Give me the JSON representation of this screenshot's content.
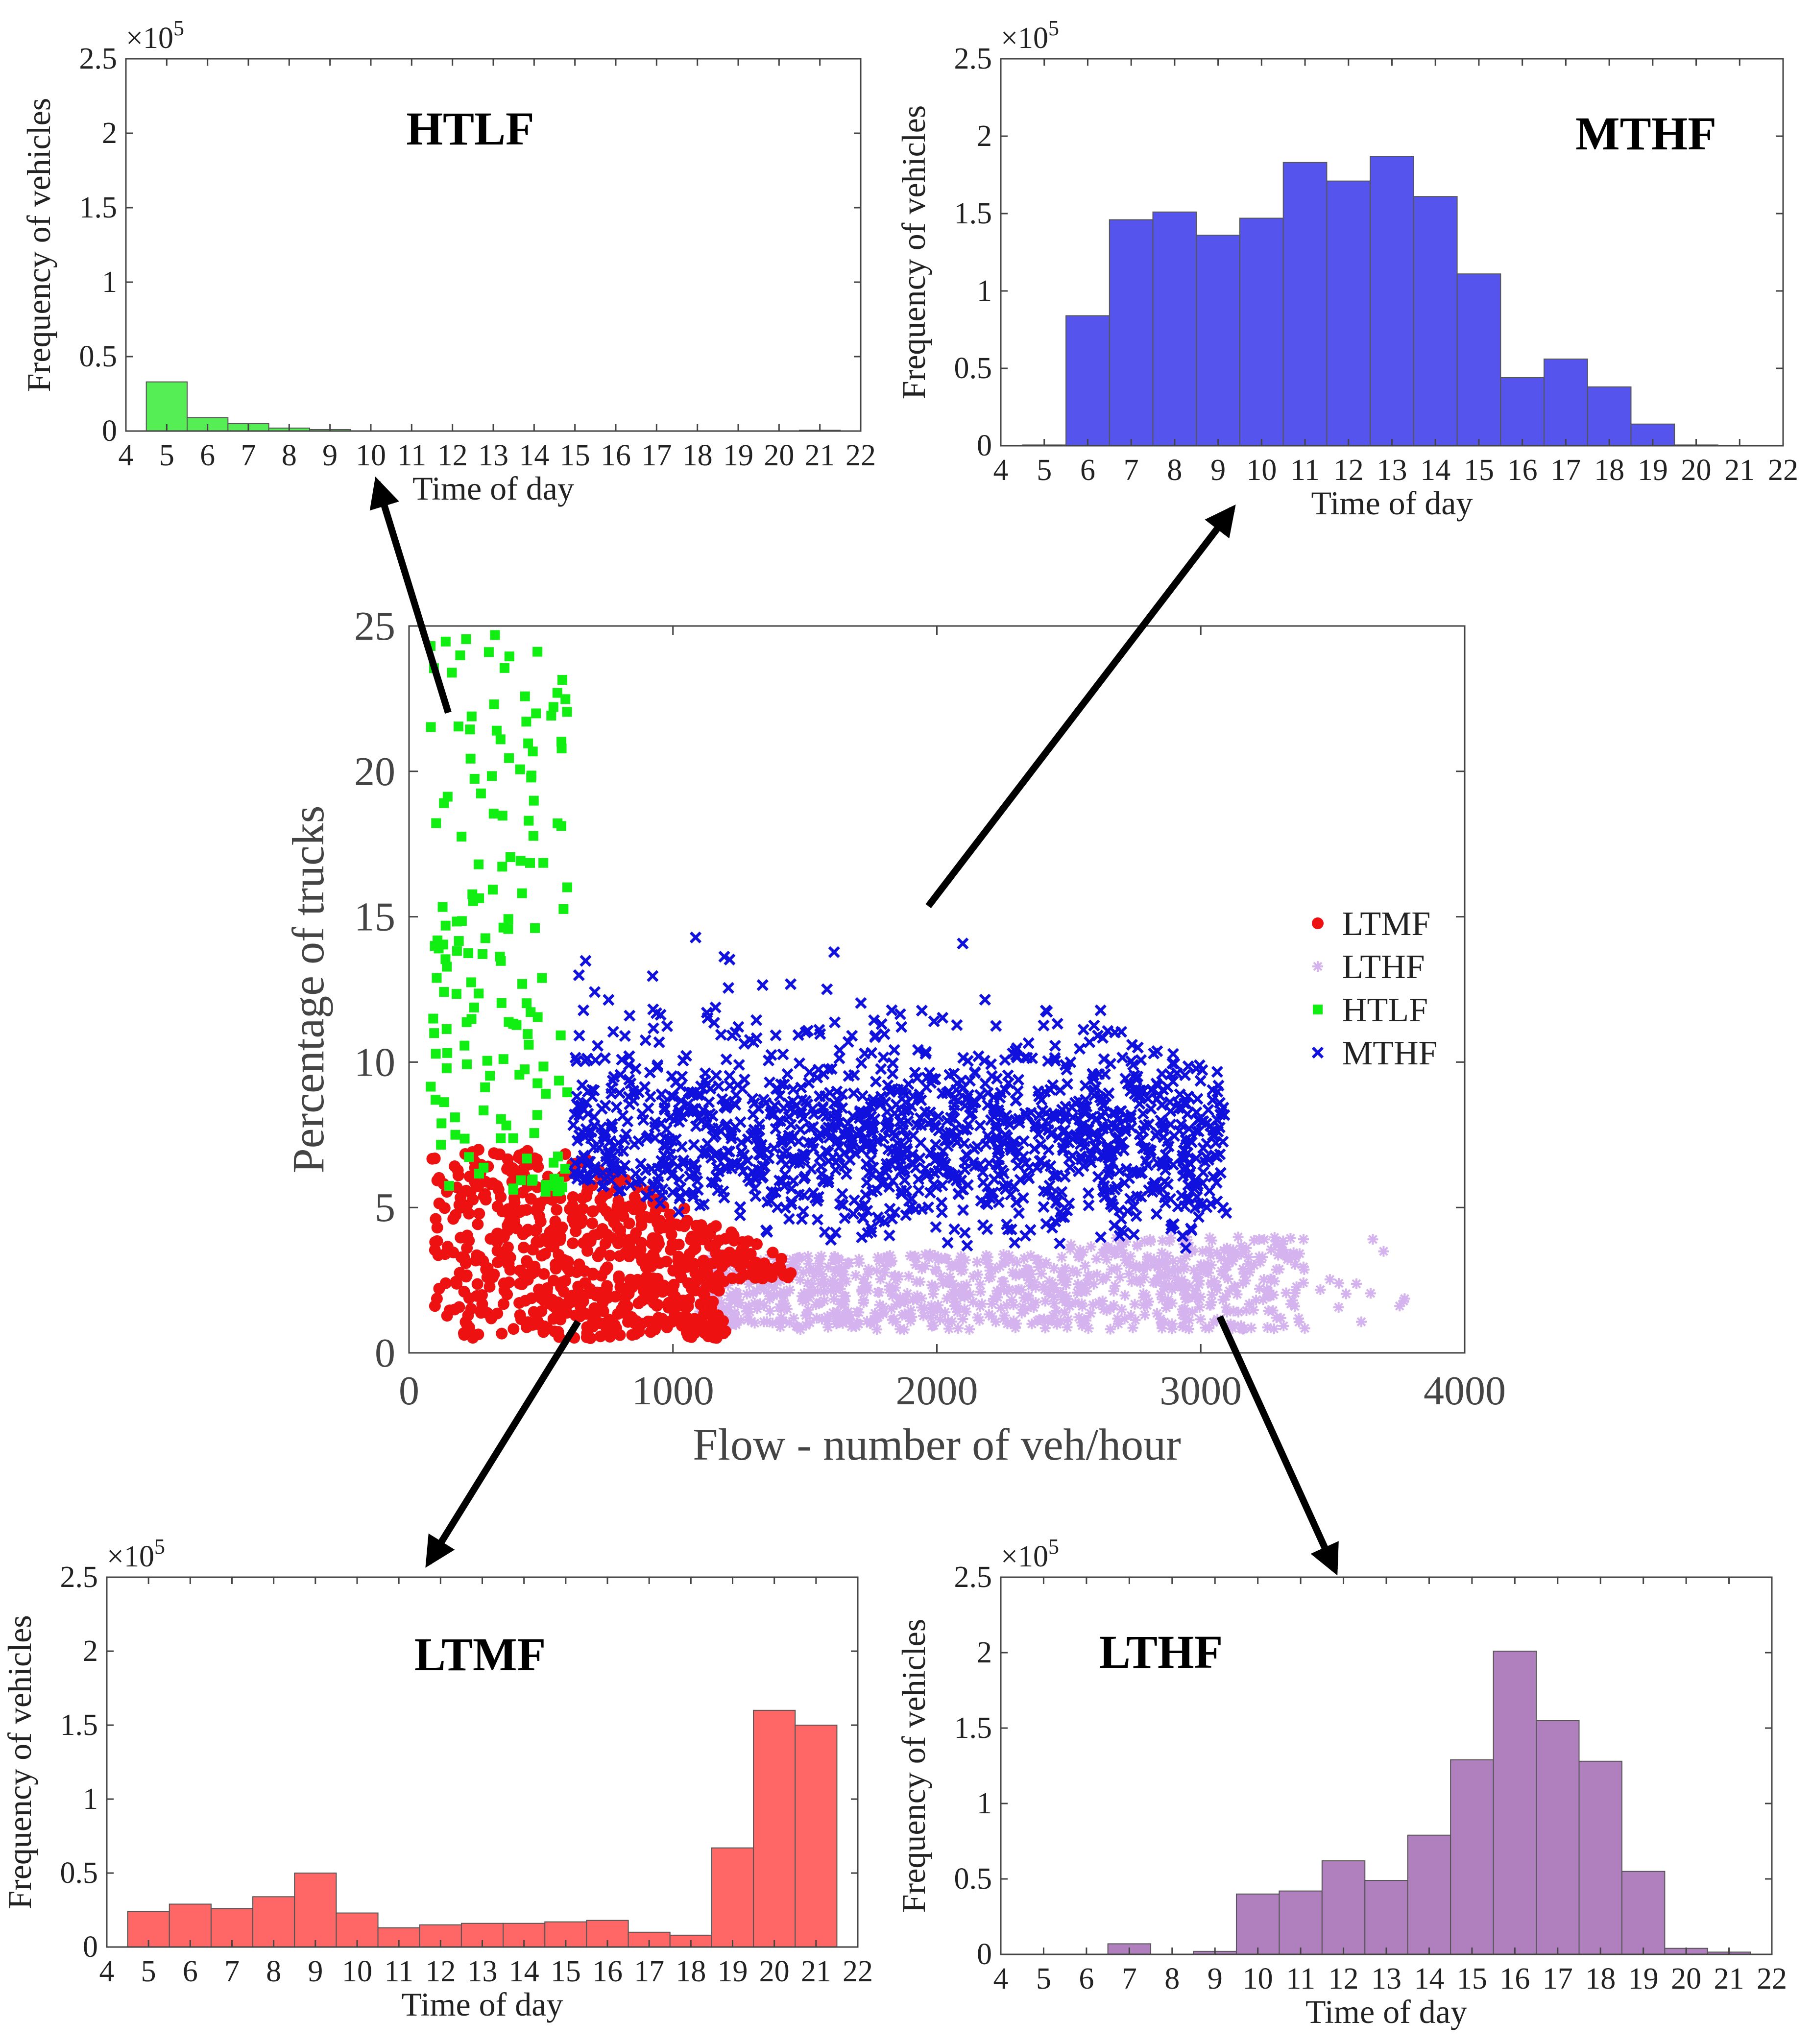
{
  "arrow_color": "#000000",
  "chart_data": [
    {
      "id": "scatter",
      "type": "scatter",
      "xlabel": "Flow - number of veh/hour",
      "ylabel": "Percentage of trucks",
      "xlim": [
        0,
        4000
      ],
      "ylim": [
        0,
        25
      ],
      "xticks": [
        "0",
        "1000",
        "2000",
        "3000",
        "4000"
      ],
      "yticks": [
        "0",
        "5",
        "10",
        "15",
        "20",
        "25"
      ],
      "grid": false,
      "legend_position": "right",
      "series": [
        {
          "name": "LTMF",
          "marker": "circle",
          "color": "#ee1111",
          "x_range": [
            80,
            1450
          ],
          "y_range": [
            0.5,
            7
          ],
          "count": 700
        },
        {
          "name": "LTHF",
          "marker": "asterisk",
          "color": "#d4b3ee",
          "x_range": [
            1100,
            3800
          ],
          "y_range": [
            0.8,
            4
          ],
          "count": 900
        },
        {
          "name": "HTLF",
          "marker": "square",
          "color": "#11ee11",
          "x_range": [
            80,
            600
          ],
          "y_range": [
            0.5,
            25
          ],
          "count": 160
        },
        {
          "name": "MTHF",
          "marker": "x",
          "color": "#1111dd",
          "x_range": [
            600,
            3100
          ],
          "y_range": [
            3.5,
            16
          ],
          "count": 1400
        }
      ]
    },
    {
      "id": "htlf",
      "type": "bar",
      "title": "HTLF",
      "xlabel": "Time of day",
      "ylabel": "Frequency of vehicles",
      "multiplier": "×10",
      "multiplier_exp": "5",
      "color": "#55ee55",
      "x": [
        5,
        6,
        7,
        8,
        9,
        10,
        11,
        12,
        13,
        14,
        15,
        16,
        17,
        18,
        19,
        20,
        21
      ],
      "values": [
        0.33,
        0.09,
        0.05,
        0.02,
        0.01,
        0,
        0,
        0,
        0,
        0,
        0,
        0,
        0,
        0,
        0,
        0,
        0.005
      ],
      "xlim": [
        4,
        22
      ],
      "ylim": [
        0,
        2.5
      ],
      "xticks": [
        "4",
        "5",
        "6",
        "7",
        "8",
        "9",
        "10",
        "11",
        "12",
        "13",
        "14",
        "15",
        "16",
        "17",
        "18",
        "19",
        "20",
        "21",
        "22"
      ],
      "yticks": [
        "0",
        "0.5",
        "1",
        "1.5",
        "2",
        "2.5"
      ]
    },
    {
      "id": "mthf",
      "type": "bar",
      "title": "MTHF",
      "xlabel": "Time of day",
      "ylabel": "Frequency of vehicles",
      "multiplier": "×10",
      "multiplier_exp": "5",
      "color": "#5555ee",
      "x": [
        5,
        6,
        7,
        8,
        9,
        10,
        11,
        12,
        13,
        14,
        15,
        16,
        17,
        18,
        19,
        20
      ],
      "values": [
        0.005,
        0.84,
        1.46,
        1.51,
        1.36,
        1.47,
        1.83,
        1.71,
        1.87,
        1.61,
        1.11,
        0.44,
        0.56,
        0.38,
        0.14,
        0.005
      ],
      "xlim": [
        4,
        22
      ],
      "ylim": [
        0,
        2.5
      ],
      "xticks": [
        "4",
        "5",
        "6",
        "7",
        "8",
        "9",
        "10",
        "11",
        "12",
        "13",
        "14",
        "15",
        "16",
        "17",
        "18",
        "19",
        "20",
        "21",
        "22"
      ],
      "yticks": [
        "0",
        "0.5",
        "1",
        "1.5",
        "2",
        "2.5"
      ]
    },
    {
      "id": "ltmf",
      "type": "bar",
      "title": "LTMF",
      "xlabel": "Time of day",
      "ylabel": "Frequency of vehicles",
      "multiplier": "×10",
      "multiplier_exp": "5",
      "color": "#ff6666",
      "x": [
        5,
        6,
        7,
        8,
        9,
        10,
        11,
        12,
        13,
        14,
        15,
        16,
        17,
        18,
        19,
        20,
        21
      ],
      "values": [
        0.24,
        0.29,
        0.26,
        0.34,
        0.5,
        0.23,
        0.13,
        0.15,
        0.16,
        0.16,
        0.17,
        0.18,
        0.1,
        0.08,
        0.67,
        1.6,
        1.5
      ],
      "xlim": [
        4,
        22
      ],
      "ylim": [
        0,
        2.5
      ],
      "xticks": [
        "4",
        "5",
        "6",
        "7",
        "8",
        "9",
        "10",
        "11",
        "12",
        "13",
        "14",
        "15",
        "16",
        "17",
        "18",
        "19",
        "20",
        "21",
        "22"
      ],
      "yticks": [
        "0",
        "0.5",
        "1",
        "1.5",
        "2",
        "2.5"
      ]
    },
    {
      "id": "lthf",
      "type": "bar",
      "title": "LTHF",
      "xlabel": "Time of day",
      "ylabel": "Frequency of vehicles",
      "multiplier": "×10",
      "multiplier_exp": "5",
      "color": "#b07fbd",
      "x": [
        5,
        6,
        7,
        8,
        9,
        10,
        11,
        12,
        13,
        14,
        15,
        16,
        17,
        18,
        19,
        20,
        21
      ],
      "values": [
        0,
        0,
        0.07,
        0,
        0.02,
        0.4,
        0.42,
        0.62,
        0.49,
        0.79,
        1.29,
        2.01,
        1.55,
        1.28,
        0.55,
        0.04,
        0.015
      ],
      "xlim": [
        4,
        22
      ],
      "ylim": [
        0,
        2.5
      ],
      "xticks": [
        "4",
        "5",
        "6",
        "7",
        "8",
        "9",
        "10",
        "11",
        "12",
        "13",
        "14",
        "15",
        "16",
        "17",
        "18",
        "19",
        "20",
        "21",
        "22"
      ],
      "yticks": [
        "0",
        "0.5",
        "1",
        "1.5",
        "2",
        "2.5"
      ]
    }
  ]
}
